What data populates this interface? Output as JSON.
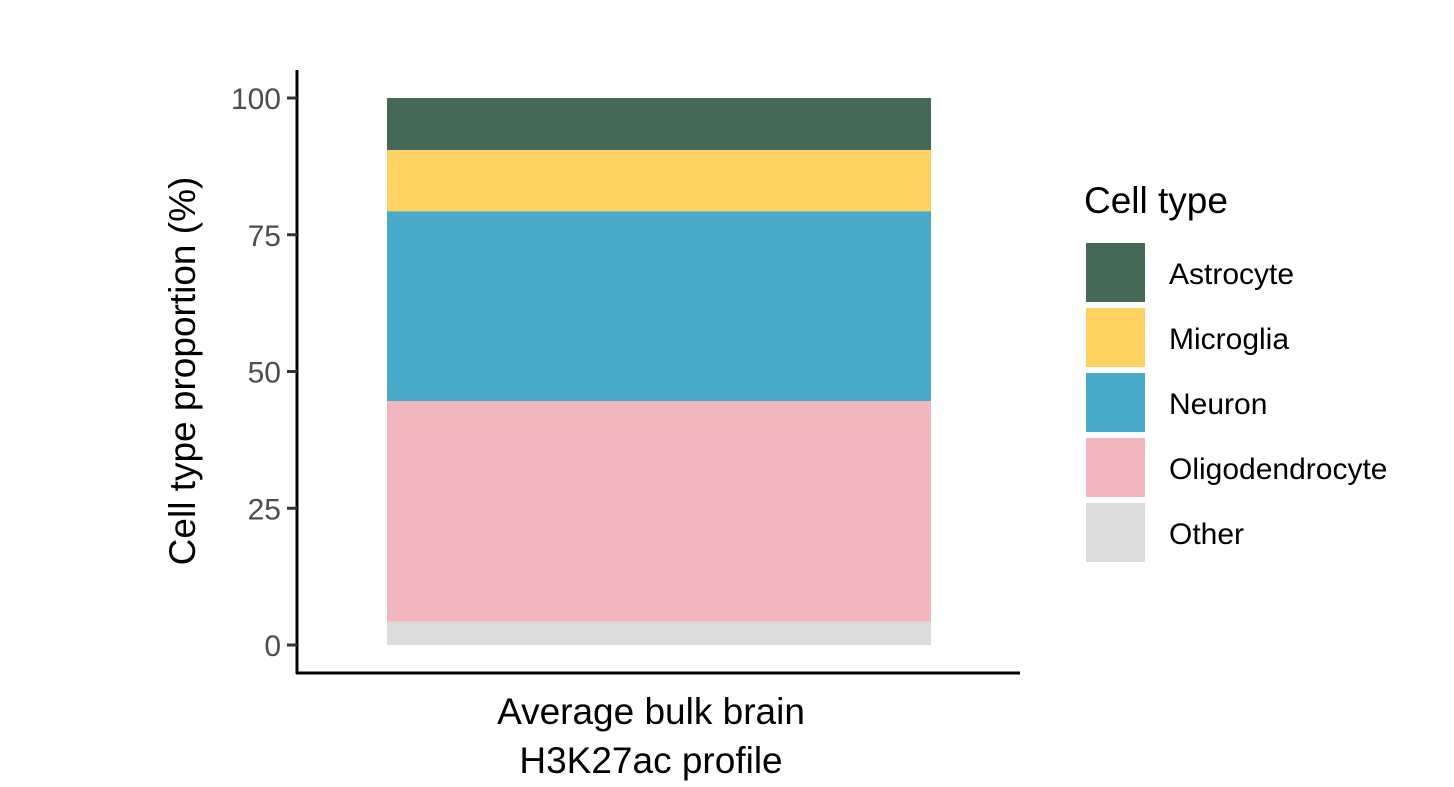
{
  "chart_data": {
    "type": "bar",
    "stacked": true,
    "categories": [
      "Average bulk brain\nH3K27ac profile"
    ],
    "series": [
      {
        "name": "Other",
        "values": [
          4.3
        ],
        "color": "#DCDCDC"
      },
      {
        "name": "Oligodendrocyte",
        "values": [
          40.3
        ],
        "color": "#F4B6BE"
      },
      {
        "name": "Neuron",
        "values": [
          34.7
        ],
        "color": "#49ABC9"
      },
      {
        "name": "Microglia",
        "values": [
          11.2
        ],
        "color": "#FDD262"
      },
      {
        "name": "Astrocyte",
        "values": [
          9.5
        ],
        "color": "#456957"
      }
    ],
    "xlabel": "",
    "ylabel": "Cell type proportion (%)",
    "ylim": [
      0,
      100
    ],
    "yticks": [
      0,
      25,
      50,
      75,
      100
    ],
    "legend": {
      "title": "Cell type",
      "placement": "right",
      "order": [
        "Astrocyte",
        "Microglia",
        "Neuron",
        "Oligodendrocyte",
        "Other"
      ]
    },
    "grid": false
  }
}
